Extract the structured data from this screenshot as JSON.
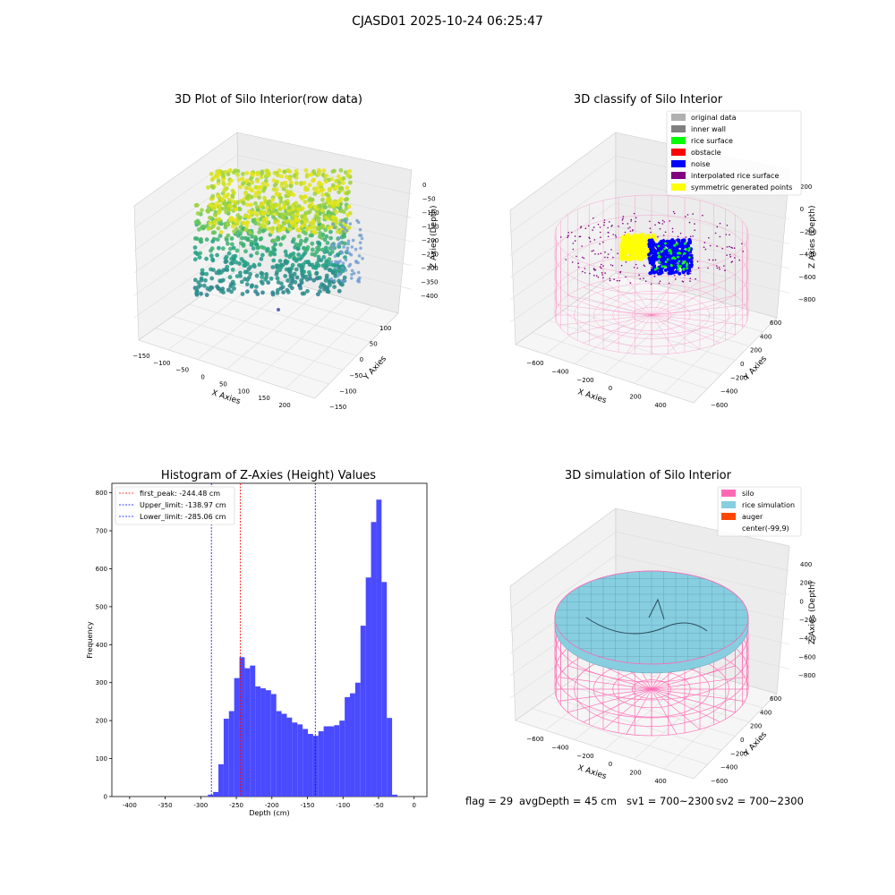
{
  "figure": {
    "suptitle": "CJASD01 2025-10-24 06:25:47",
    "status": {
      "flag": "flag = 29",
      "avg": "avgDepth = 45 cm",
      "sv1": "sv1 = 700~2300",
      "sv2": "sv2 = 700~2300"
    }
  },
  "colors": {
    "hist_bar": "#4a4aff",
    "first_peak_line": "#ff0000",
    "limit_line": "#0000ff",
    "silo": "#ff69b4",
    "rice_simulation": "#87cee0",
    "auger": "#ff4500",
    "rice_surface": "#00ff00",
    "noise": "#0000ff",
    "symmetric": "#ffff00",
    "original": "#b0b0b0",
    "inner_wall": "#808080",
    "obstacle": "#ff0000",
    "interpolated": "#800080"
  },
  "chart_data": [
    {
      "type": "scatter",
      "title": "3D Plot of Silo Interior(row data)",
      "xlabel": "X Axies",
      "ylabel": "Y Axies",
      "zlabel": "Z Axies (Depth)",
      "xticks": [
        "−150",
        "−100",
        "−50",
        "0",
        "50",
        "100",
        "150",
        "200"
      ],
      "yticks": [
        "100",
        "50",
        "0",
        "−50",
        "−100",
        "−150"
      ],
      "zticks": [
        "0",
        "−50",
        "−100",
        "−150",
        "−200",
        "−250",
        "−300",
        "−350",
        "−400"
      ],
      "xlim": [
        -160,
        220
      ],
      "ylim": [
        -160,
        130
      ],
      "zlim": [
        -420,
        10
      ],
      "colormap": "viridis (by depth)"
    },
    {
      "type": "scatter",
      "title": "3D classify of Silo Interior",
      "xlabel": "X Axies",
      "ylabel": "Y Axies",
      "zlabel": "Z Axies (Depth)",
      "xticks": [
        "−600",
        "−400",
        "−200",
        "0",
        "200",
        "400"
      ],
      "yticks": [
        "600",
        "400",
        "200",
        "0",
        "−200",
        "−400",
        "−600"
      ],
      "zticks": [
        "200",
        "0",
        "−200",
        "−400",
        "−600",
        "−800"
      ],
      "legend_position": "upper-right",
      "legend": [
        {
          "label": "original data",
          "color": "#b0b0b0"
        },
        {
          "label": "inner wall",
          "color": "#808080"
        },
        {
          "label": "rice surface",
          "color": "#00ff00"
        },
        {
          "label": "obstacle",
          "color": "#ff0000"
        },
        {
          "label": "noise",
          "color": "#0000ff"
        },
        {
          "label": "interpolated rice surface",
          "color": "#800080"
        },
        {
          "label": "symmetric generated points",
          "color": "#ffff00"
        }
      ]
    },
    {
      "type": "bar",
      "title": "Histogram of Z-Axies (Height) Values",
      "xlabel": "Depth (cm)",
      "ylabel": "Frequency",
      "xlim": [
        -425,
        18
      ],
      "ylim": [
        0,
        825
      ],
      "xticks": [
        -400,
        -350,
        -300,
        -250,
        -200,
        -150,
        -100,
        -50,
        0
      ],
      "yticks": [
        0,
        100,
        200,
        300,
        400,
        500,
        600,
        700,
        800
      ],
      "bin_width": 7.4,
      "bin_start": -290,
      "values": [
        5,
        12,
        85,
        205,
        225,
        312,
        367,
        338,
        345,
        290,
        285,
        280,
        270,
        225,
        218,
        208,
        195,
        190,
        178,
        165,
        160,
        172,
        185,
        185,
        188,
        200,
        262,
        272,
        300,
        450,
        577,
        723,
        782,
        565,
        207,
        5
      ],
      "vlines": [
        {
          "value": -244.48,
          "label": "first_peak: -244.48 cm",
          "style": "red"
        },
        {
          "value": -138.97,
          "label": "Upper_limit: -138.97 cm",
          "style": "blue"
        },
        {
          "value": -285.06,
          "label": "Lower_limit: -285.06 cm",
          "style": "blue"
        }
      ],
      "legend_position": "upper-left"
    },
    {
      "type": "scatter",
      "title": "3D simulation of Silo Interior",
      "xlabel": "X Axies",
      "ylabel": "Y Axies",
      "zlabel": "Z Axies (Depth)",
      "xticks": [
        "−600",
        "−400",
        "−200",
        "0",
        "200",
        "400"
      ],
      "yticks": [
        "600",
        "400",
        "200",
        "0",
        "−200",
        "−400",
        "−600"
      ],
      "zticks": [
        "400",
        "200",
        "0",
        "−200",
        "−400",
        "−600",
        "−800"
      ],
      "legend_position": "upper-right",
      "legend": [
        {
          "label": "silo",
          "color": "#ff69b4"
        },
        {
          "label": "rice simulation",
          "color": "#87cee0"
        },
        {
          "label": "auger",
          "color": "#ff4500"
        },
        {
          "label": "center(-99,9)",
          "color": ""
        }
      ]
    }
  ]
}
